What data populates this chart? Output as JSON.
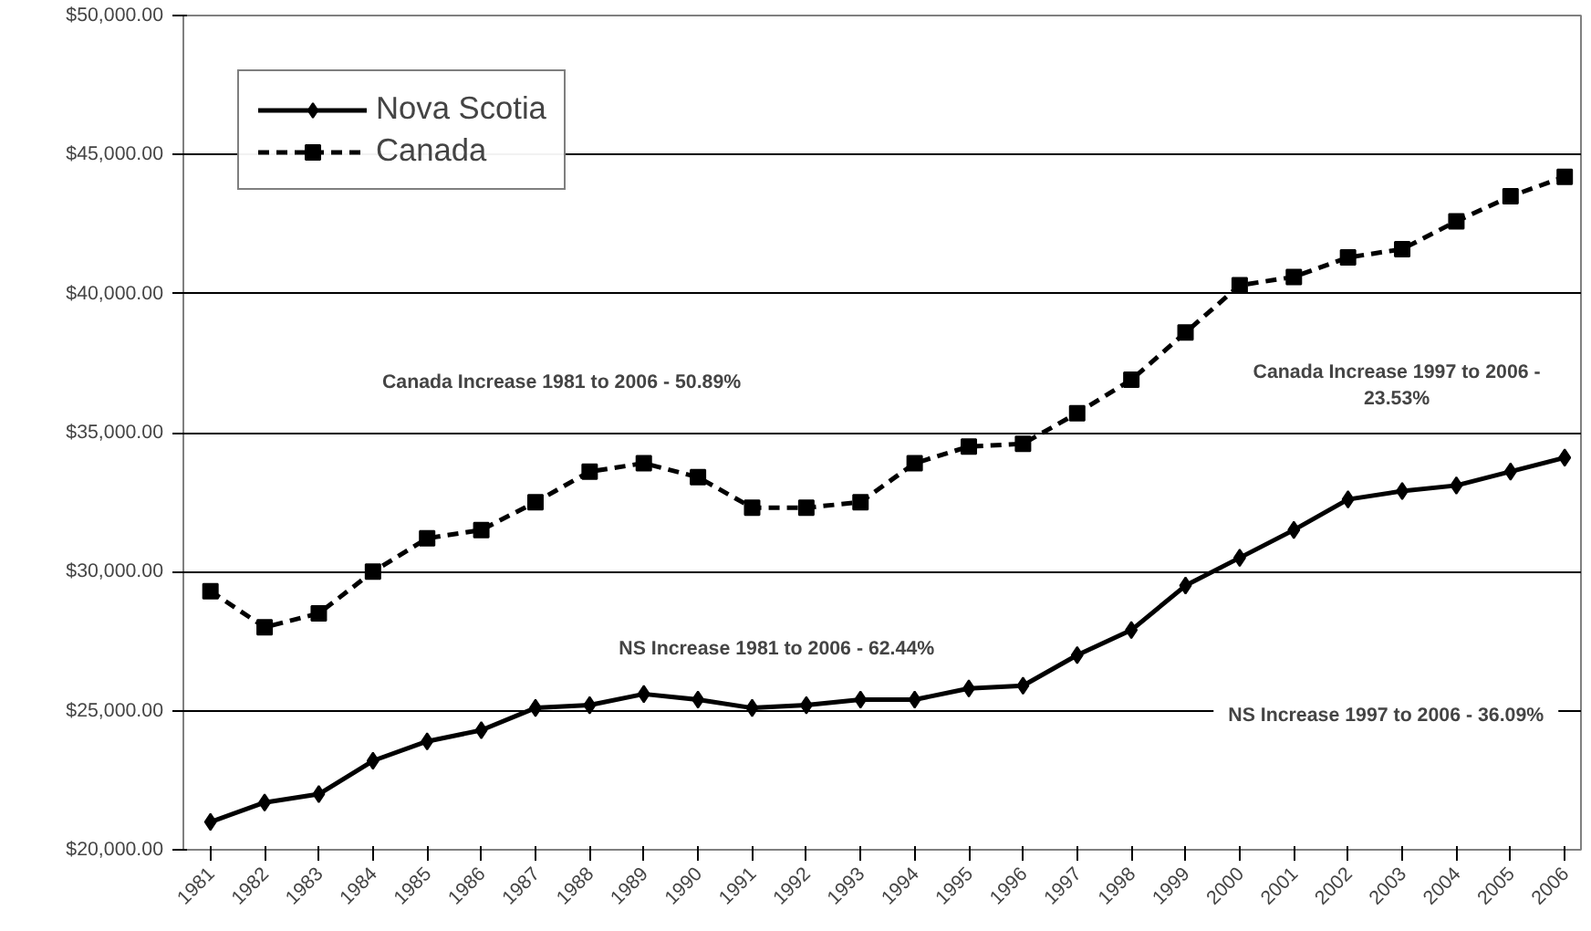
{
  "chart_data": {
    "type": "line",
    "categories": [
      "1981",
      "1982",
      "1983",
      "1984",
      "1985",
      "1986",
      "1987",
      "1988",
      "1989",
      "1990",
      "1991",
      "1992",
      "1993",
      "1994",
      "1995",
      "1996",
      "1997",
      "1998",
      "1999",
      "2000",
      "2001",
      "2002",
      "2003",
      "2004",
      "2005",
      "2006"
    ],
    "series": [
      {
        "name": "Nova Scotia",
        "color": "#000000",
        "marker": "diamond",
        "line_style": "solid",
        "values": [
          21000,
          21700,
          22000,
          23200,
          23900,
          24300,
          25100,
          25200,
          25600,
          25400,
          25100,
          25200,
          25400,
          25400,
          25800,
          25900,
          27000,
          27900,
          29500,
          30500,
          31500,
          32600,
          32900,
          33100,
          33600,
          34100
        ]
      },
      {
        "name": "Canada",
        "color": "#000000",
        "marker": "square",
        "line_style": "dashed",
        "values": [
          29300,
          28000,
          28500,
          30000,
          31200,
          31500,
          32500,
          33600,
          33900,
          33400,
          32300,
          32300,
          32500,
          33900,
          34500,
          34600,
          35700,
          36900,
          38600,
          40300,
          40600,
          41300,
          41600,
          42600,
          43500,
          44200
        ]
      }
    ],
    "ylim": [
      20000,
      50000
    ],
    "yticks": [
      {
        "value": 20000,
        "label": "$20,000.00"
      },
      {
        "value": 25000,
        "label": "$25,000.00"
      },
      {
        "value": 30000,
        "label": "$30,000.00"
      },
      {
        "value": 35000,
        "label": "$35,000.00"
      },
      {
        "value": 40000,
        "label": "$40,000.00"
      },
      {
        "value": 45000,
        "label": "$45,000.00"
      },
      {
        "value": 50000,
        "label": "$50,000.00"
      }
    ],
    "grid": "y",
    "legend": "top left",
    "annotations": [
      "Canada Increase 1981 to 2006 -  50.89%",
      "NS Increase 1981 to 2006 -  62.44%",
      "Canada Increase 1997 to 2006 -\n23.53%",
      "NS Increase 1997 to 2006 - 36.09%"
    ]
  }
}
